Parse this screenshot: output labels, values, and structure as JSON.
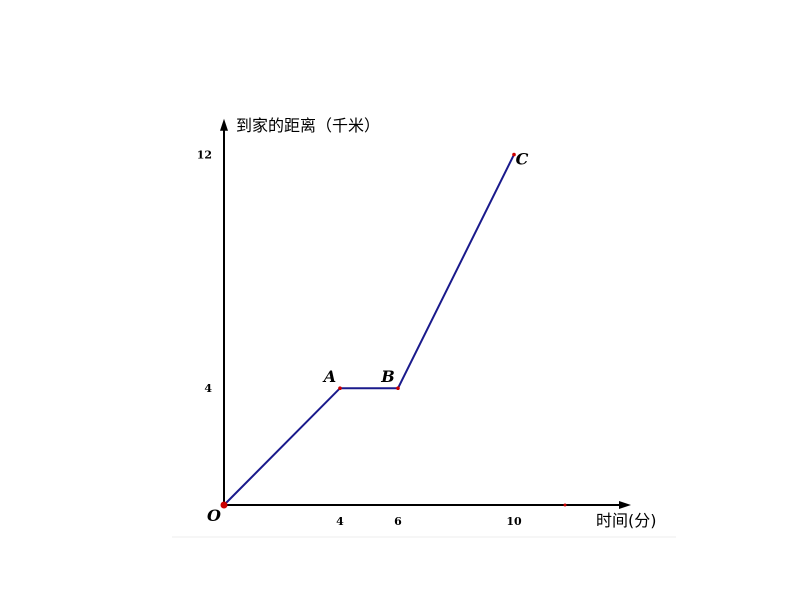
{
  "chart_data": {
    "type": "line",
    "xlabel": "时间(分)",
    "ylabel": "到家的距离（千米）",
    "origin_label": "O",
    "x_ticks": [
      4,
      6,
      10
    ],
    "y_ticks": [
      4,
      12
    ],
    "xlim": [
      0,
      13
    ],
    "ylim": [
      0,
      12.2
    ],
    "grid": false,
    "series": [
      {
        "points": [
          {
            "label": "",
            "x": 0,
            "y": 0
          },
          {
            "label": "A",
            "x": 4,
            "y": 4
          },
          {
            "label": "B",
            "x": 6,
            "y": 4
          },
          {
            "label": "C",
            "x": 10,
            "y": 12
          }
        ]
      }
    ],
    "colors": {
      "line": "#1a1a8c",
      "axis": "#000000",
      "point": "#cc0000"
    }
  }
}
